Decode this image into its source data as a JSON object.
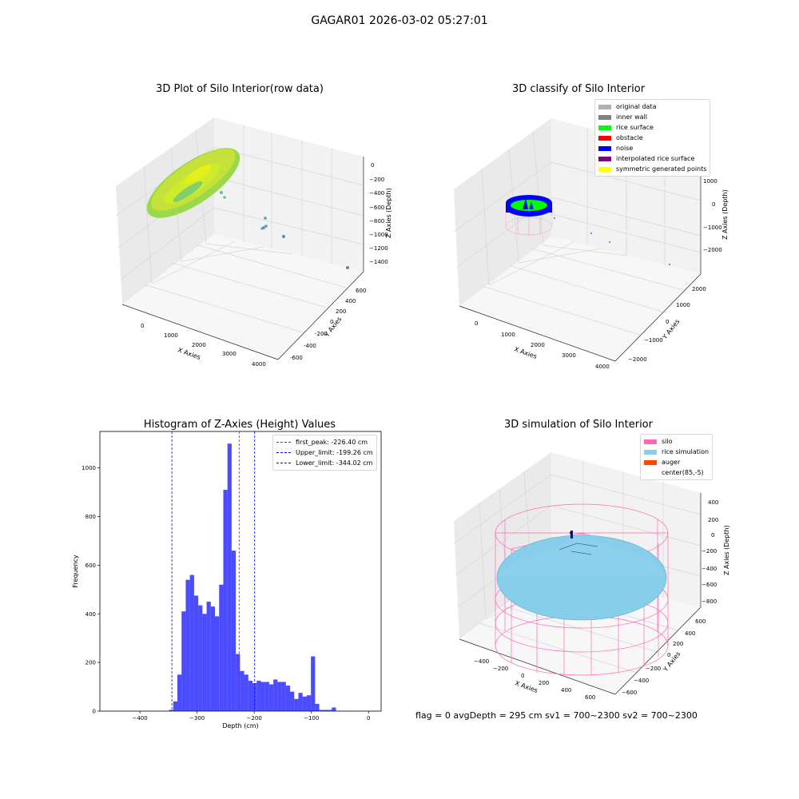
{
  "suptitle": "GAGAR01 2026-03-02 05:27:01",
  "panels": {
    "raw": {
      "title": "3D Plot of Silo Interior(row data)",
      "xlabel": "X Axies",
      "ylabel": "Y Axies",
      "zlabel": "Z Axies (Depth)",
      "xticks": [
        "0",
        "1000",
        "2000",
        "3000",
        "4000"
      ],
      "yticks": [
        "-600",
        "-400",
        "-200",
        "0",
        "200",
        "400",
        "600"
      ],
      "zticks": [
        "0",
        "−200",
        "−400",
        "−600",
        "−800",
        "−1000",
        "−1200",
        "−1400"
      ]
    },
    "classify": {
      "title": "3D classify of Silo Interior",
      "xlabel": "X Axies",
      "ylabel": "Y Axies",
      "zlabel": "Z Axies (Depth)",
      "xticks": [
        "0",
        "1000",
        "2000",
        "3000",
        "4000"
      ],
      "yticks": [
        "−2000",
        "−1000",
        "0",
        "1000",
        "2000"
      ],
      "zticks": [
        "1000",
        "0",
        "−1000",
        "−2000"
      ],
      "legend": [
        {
          "label": "original data",
          "color": "#b0b0b0"
        },
        {
          "label": "inner wall",
          "color": "#808080"
        },
        {
          "label": "rice surface",
          "color": "#00ff00"
        },
        {
          "label": "obstacle",
          "color": "#ff0000"
        },
        {
          "label": "noise",
          "color": "#0000ff"
        },
        {
          "label": "interpolated rice surface",
          "color": "#800080"
        },
        {
          "label": "symmetric generated points",
          "color": "#ffff00"
        }
      ]
    },
    "simulation": {
      "title": "3D simulation of Silo Interior",
      "xlabel": "X Axies",
      "ylabel": "Y Axies",
      "zlabel": "Z Axies (Depth)",
      "xticks": [
        "−400",
        "−200",
        "0",
        "200",
        "400",
        "600"
      ],
      "yticks": [
        "−600",
        "−400",
        "−200",
        "0",
        "200",
        "400",
        "600"
      ],
      "zticks": [
        "400",
        "200",
        "0",
        "−200",
        "−400",
        "−600",
        "−800"
      ],
      "legend": [
        {
          "label": "silo",
          "color": "#ff69b4"
        },
        {
          "label": "rice simulation",
          "color": "#87ceeb"
        },
        {
          "label": "auger",
          "color": "#ff4500"
        },
        {
          "label": "center(85,-5)",
          "color": "#ffffff"
        }
      ],
      "footer": "flag = 0     avgDepth = 295 cm  sv1 = 700~2300  sv2 = 700~2300"
    }
  },
  "chart_data": {
    "type": "bar",
    "title": "Histogram of Z-Axies (Height) Values",
    "xlabel": "Depth (cm)",
    "ylabel": "Frequency",
    "xlim": [
      -470,
      22
    ],
    "ylim": [
      0,
      1150
    ],
    "xticks": [
      -400,
      -300,
      -200,
      -100,
      0
    ],
    "yticks": [
      0,
      200,
      400,
      600,
      800,
      1000
    ],
    "bin_start": -349,
    "bin_width": 7.3,
    "values": [
      5,
      40,
      150,
      410,
      540,
      560,
      475,
      435,
      400,
      450,
      430,
      390,
      520,
      910,
      1100,
      660,
      235,
      165,
      150,
      125,
      115,
      125,
      120,
      120,
      110,
      130,
      120,
      120,
      105,
      80,
      50,
      75,
      60,
      65,
      225,
      30,
      5,
      5,
      5,
      15
    ],
    "color": "#0000ff",
    "vlines": [
      {
        "x": -226.4,
        "color": "#ff0000",
        "label": "first_peak: -226.40 cm"
      },
      {
        "x": -199.26,
        "color": "#0000ff",
        "label": "Upper_limit: -199.26 cm"
      },
      {
        "x": -344.02,
        "color": "#0000ff",
        "label": "Lower_limit: -344.02 cm"
      }
    ],
    "legend_position": "upper right"
  }
}
